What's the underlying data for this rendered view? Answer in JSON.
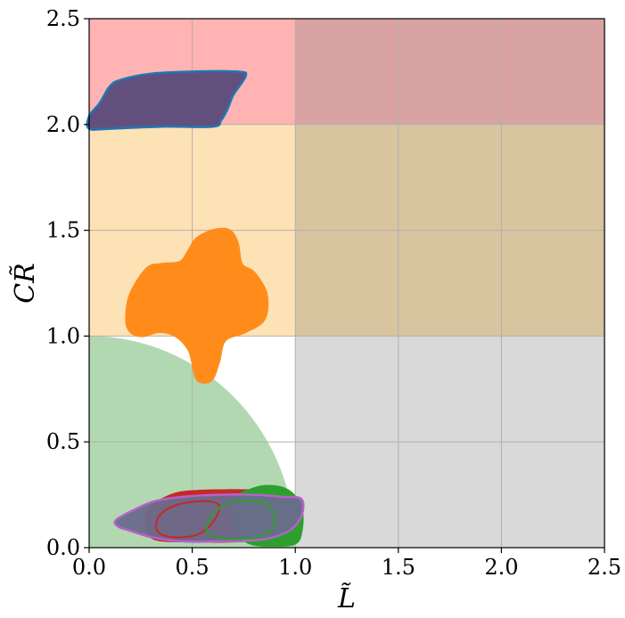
{
  "chart_data": {
    "type": "scatter",
    "title": "",
    "xlabel": "L̃",
    "ylabel": "CR̃",
    "xlim": [
      0.0,
      2.5
    ],
    "ylim": [
      0.0,
      2.5
    ],
    "grid": true,
    "xticks": [
      "0.0",
      "0.5",
      "1.0",
      "1.5",
      "2.0",
      "2.5"
    ],
    "yticks": [
      "0.0",
      "0.5",
      "1.0",
      "1.5",
      "2.0",
      "2.5"
    ],
    "background_regions": [
      {
        "x": [
          0.0,
          1.0
        ],
        "y": [
          2.0,
          2.5
        ],
        "color": "#ffb3b3"
      },
      {
        "x": [
          1.0,
          2.5
        ],
        "y": [
          2.0,
          2.5
        ],
        "color": "#d9a3a3"
      },
      {
        "x": [
          0.0,
          1.0
        ],
        "y": [
          1.0,
          2.0
        ],
        "color": "#fde2b6"
      },
      {
        "x": [
          1.0,
          2.5
        ],
        "y": [
          1.0,
          2.0
        ],
        "color": "#d8c49f"
      },
      {
        "x": [
          1.0,
          2.5
        ],
        "y": [
          0.0,
          1.0
        ],
        "color": "#d9d9d9"
      },
      {
        "shape": "quarter-circle",
        "center": [
          0.0,
          0.0
        ],
        "radius": 1.0,
        "color": "#b2d8b2"
      }
    ],
    "regions": [
      {
        "fill": "#5a4a7a",
        "edge": "#1f77b4",
        "alpha": 0.95,
        "outline": [
          [
            0.0,
            2.04
          ],
          [
            0.05,
            2.1
          ],
          [
            0.1,
            2.18
          ],
          [
            0.15,
            2.21
          ],
          [
            0.3,
            2.24
          ],
          [
            0.5,
            2.25
          ],
          [
            0.72,
            2.25
          ],
          [
            0.76,
            2.23
          ],
          [
            0.7,
            2.14
          ],
          [
            0.67,
            2.07
          ],
          [
            0.64,
            2.02
          ],
          [
            0.6,
            1.99
          ],
          [
            0.35,
            1.99
          ],
          [
            0.1,
            1.98
          ],
          [
            0.0,
            1.98
          ]
        ]
      },
      {
        "fill": "#ff8c1a",
        "edge": "#ff8c1a",
        "alpha": 1.0,
        "outline": [
          [
            0.18,
            1.08
          ],
          [
            0.2,
            1.2
          ],
          [
            0.28,
            1.32
          ],
          [
            0.35,
            1.34
          ],
          [
            0.44,
            1.35
          ],
          [
            0.48,
            1.4
          ],
          [
            0.52,
            1.46
          ],
          [
            0.6,
            1.5
          ],
          [
            0.68,
            1.5
          ],
          [
            0.72,
            1.44
          ],
          [
            0.74,
            1.34
          ],
          [
            0.8,
            1.3
          ],
          [
            0.86,
            1.2
          ],
          [
            0.85,
            1.08
          ],
          [
            0.76,
            1.02
          ],
          [
            0.66,
            0.98
          ],
          [
            0.63,
            0.88
          ],
          [
            0.6,
            0.8
          ],
          [
            0.56,
            0.78
          ],
          [
            0.52,
            0.8
          ],
          [
            0.5,
            0.88
          ],
          [
            0.48,
            0.94
          ],
          [
            0.42,
            1.0
          ],
          [
            0.34,
            1.02
          ],
          [
            0.26,
            1.0
          ],
          [
            0.2,
            1.02
          ]
        ]
      },
      {
        "fill": "#c62828",
        "edge": "#c62828",
        "alpha": 1.0,
        "outline": [
          [
            0.28,
            0.16
          ],
          [
            0.34,
            0.22
          ],
          [
            0.44,
            0.26
          ],
          [
            0.6,
            0.27
          ],
          [
            0.78,
            0.27
          ],
          [
            0.94,
            0.26
          ],
          [
            1.0,
            0.22
          ],
          [
            0.97,
            0.12
          ],
          [
            0.9,
            0.05
          ],
          [
            0.7,
            0.03
          ],
          [
            0.5,
            0.03
          ],
          [
            0.32,
            0.04
          ],
          [
            0.28,
            0.1
          ]
        ]
      },
      {
        "fill": "#2ca02c",
        "edge": "#2ca02c",
        "alpha": 1.0,
        "outline": [
          [
            0.7,
            0.22
          ],
          [
            0.8,
            0.28
          ],
          [
            0.9,
            0.29
          ],
          [
            0.98,
            0.26
          ],
          [
            1.03,
            0.18
          ],
          [
            1.03,
            0.08
          ],
          [
            1.0,
            0.02
          ],
          [
            0.9,
            0.01
          ],
          [
            0.78,
            0.02
          ],
          [
            0.72,
            0.08
          ]
        ]
      },
      {
        "fill": "#6a6b8c",
        "edge": "#b562c8",
        "alpha": 0.95,
        "outline": [
          [
            0.13,
            0.13
          ],
          [
            0.22,
            0.18
          ],
          [
            0.32,
            0.22
          ],
          [
            0.45,
            0.24
          ],
          [
            0.62,
            0.25
          ],
          [
            0.8,
            0.25
          ],
          [
            0.94,
            0.24
          ],
          [
            1.03,
            0.23
          ],
          [
            1.03,
            0.15
          ],
          [
            0.97,
            0.08
          ],
          [
            0.85,
            0.04
          ],
          [
            0.65,
            0.03
          ],
          [
            0.45,
            0.03
          ],
          [
            0.3,
            0.05
          ],
          [
            0.2,
            0.08
          ],
          [
            0.14,
            0.1
          ]
        ]
      }
    ],
    "inner_outlines": [
      {
        "edge": "#c62828",
        "points": [
          [
            0.33,
            0.08
          ],
          [
            0.34,
            0.15
          ],
          [
            0.42,
            0.2
          ],
          [
            0.55,
            0.22
          ],
          [
            0.63,
            0.2
          ],
          [
            0.6,
            0.12
          ],
          [
            0.52,
            0.06
          ],
          [
            0.4,
            0.05
          ]
        ]
      },
      {
        "edge": "#2ca02c",
        "points": [
          [
            0.57,
            0.08
          ],
          [
            0.6,
            0.16
          ],
          [
            0.68,
            0.21
          ],
          [
            0.78,
            0.22
          ],
          [
            0.87,
            0.2
          ],
          [
            0.9,
            0.12
          ],
          [
            0.85,
            0.06
          ],
          [
            0.72,
            0.04
          ],
          [
            0.62,
            0.05
          ]
        ]
      }
    ]
  }
}
